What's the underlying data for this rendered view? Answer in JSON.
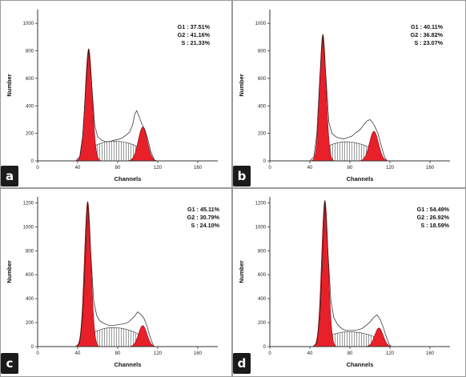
{
  "chart_data": [
    {
      "panel": "a",
      "type": "area",
      "xlabel": "Channels",
      "ylabel": "Number",
      "xlim": [
        0,
        180
      ],
      "ylim": [
        0,
        1100
      ],
      "x_ticks": [
        0,
        40,
        80,
        120,
        160
      ],
      "y_ticks": [
        0,
        200,
        400,
        600,
        800,
        1000
      ],
      "stats": [
        {
          "label": "G1",
          "text": "G1 : 37.51%"
        },
        {
          "label": "G2",
          "text": "G2 : 41.16%"
        },
        {
          "label": "S",
          "text": "S : 21.33%"
        }
      ],
      "g1_peak": {
        "center": 51,
        "height": 815,
        "sigma": 3.5
      },
      "g2_peak": {
        "center": 105,
        "height": 245,
        "sigma": 4.5
      },
      "s_phase": {
        "start": 44,
        "end": 112,
        "level": 145
      },
      "histogram": [
        [
          38,
          0
        ],
        [
          42,
          30
        ],
        [
          45,
          180
        ],
        [
          48,
          520
        ],
        [
          51,
          815
        ],
        [
          54,
          560
        ],
        [
          57,
          260
        ],
        [
          60,
          175
        ],
        [
          64,
          150
        ],
        [
          68,
          140
        ],
        [
          72,
          140
        ],
        [
          76,
          150
        ],
        [
          80,
          155
        ],
        [
          84,
          165
        ],
        [
          88,
          185
        ],
        [
          92,
          210
        ],
        [
          95,
          265
        ],
        [
          97,
          340
        ],
        [
          99,
          365
        ],
        [
          101,
          330
        ],
        [
          104,
          270
        ],
        [
          107,
          230
        ],
        [
          110,
          160
        ],
        [
          113,
          70
        ],
        [
          117,
          0
        ]
      ]
    },
    {
      "panel": "b",
      "type": "area",
      "xlabel": "Channels",
      "ylabel": "Number",
      "xlim": [
        0,
        180
      ],
      "ylim": [
        0,
        1100
      ],
      "x_ticks": [
        0,
        40,
        80,
        120,
        160
      ],
      "y_ticks": [
        0,
        200,
        400,
        600,
        800,
        1000
      ],
      "stats": [
        {
          "label": "G1",
          "text": "G1 : 40.11%"
        },
        {
          "label": "G2",
          "text": "G2 : 36.82%"
        },
        {
          "label": "S",
          "text": "S : 23.07%"
        }
      ],
      "g1_peak": {
        "center": 53,
        "height": 920,
        "sigma": 3.2
      },
      "g2_peak": {
        "center": 104,
        "height": 215,
        "sigma": 4.5
      },
      "s_phase": {
        "start": 45,
        "end": 110,
        "level": 140
      },
      "histogram": [
        [
          40,
          0
        ],
        [
          44,
          30
        ],
        [
          47,
          200
        ],
        [
          50,
          620
        ],
        [
          53,
          920
        ],
        [
          56,
          620
        ],
        [
          59,
          280
        ],
        [
          62,
          200
        ],
        [
          66,
          175
        ],
        [
          70,
          165
        ],
        [
          74,
          160
        ],
        [
          78,
          170
        ],
        [
          82,
          180
        ],
        [
          86,
          205
        ],
        [
          90,
          225
        ],
        [
          94,
          265
        ],
        [
          97,
          290
        ],
        [
          100,
          300
        ],
        [
          102,
          285
        ],
        [
          105,
          250
        ],
        [
          108,
          200
        ],
        [
          111,
          120
        ],
        [
          114,
          40
        ],
        [
          117,
          0
        ]
      ]
    },
    {
      "panel": "c",
      "type": "area",
      "xlabel": "Channels",
      "ylabel": "Number",
      "xlim": [
        0,
        180
      ],
      "ylim": [
        0,
        1250
      ],
      "x_ticks": [
        0,
        40,
        80,
        120,
        160
      ],
      "y_ticks": [
        0,
        200,
        400,
        600,
        800,
        1000,
        1200
      ],
      "stats": [
        {
          "label": "G1",
          "text": "G1 : 45.11%"
        },
        {
          "label": "G2",
          "text": "G2 : 30.79%"
        },
        {
          "label": "S",
          "text": "S : 24.10%"
        }
      ],
      "g1_peak": {
        "center": 50,
        "height": 1210,
        "sigma": 3.3
      },
      "g2_peak": {
        "center": 105,
        "height": 175,
        "sigma": 4.2
      },
      "s_phase": {
        "start": 44,
        "end": 110,
        "level": 160
      },
      "histogram": [
        [
          38,
          0
        ],
        [
          42,
          30
        ],
        [
          45,
          250
        ],
        [
          48,
          800
        ],
        [
          50,
          1210
        ],
        [
          53,
          800
        ],
        [
          56,
          380
        ],
        [
          59,
          260
        ],
        [
          62,
          215
        ],
        [
          66,
          195
        ],
        [
          70,
          180
        ],
        [
          74,
          175
        ],
        [
          78,
          180
        ],
        [
          82,
          185
        ],
        [
          86,
          190
        ],
        [
          90,
          200
        ],
        [
          94,
          230
        ],
        [
          97,
          255
        ],
        [
          100,
          290
        ],
        [
          103,
          270
        ],
        [
          106,
          240
        ],
        [
          109,
          180
        ],
        [
          112,
          90
        ],
        [
          116,
          0
        ]
      ]
    },
    {
      "panel": "d",
      "type": "area",
      "xlabel": "Channels",
      "ylabel": "Number",
      "xlim": [
        0,
        180
      ],
      "ylim": [
        0,
        1250
      ],
      "x_ticks": [
        0,
        40,
        80,
        120,
        160
      ],
      "y_ticks": [
        0,
        200,
        400,
        600,
        800,
        1000,
        1200
      ],
      "stats": [
        {
          "label": "G1",
          "text": "G1 : 54.49%"
        },
        {
          "label": "G2",
          "text": "G2 : 26.92%"
        },
        {
          "label": "S",
          "text": "S : 18.59%"
        }
      ],
      "g1_peak": {
        "center": 55,
        "height": 1220,
        "sigma": 3.3
      },
      "g2_peak": {
        "center": 109,
        "height": 155,
        "sigma": 4.2
      },
      "s_phase": {
        "start": 48,
        "end": 114,
        "level": 125
      },
      "histogram": [
        [
          43,
          0
        ],
        [
          47,
          30
        ],
        [
          50,
          250
        ],
        [
          53,
          800
        ],
        [
          55,
          1220
        ],
        [
          58,
          800
        ],
        [
          61,
          380
        ],
        [
          64,
          240
        ],
        [
          68,
          180
        ],
        [
          72,
          150
        ],
        [
          76,
          135
        ],
        [
          80,
          135
        ],
        [
          84,
          135
        ],
        [
          88,
          140
        ],
        [
          92,
          150
        ],
        [
          96,
          175
        ],
        [
          100,
          205
        ],
        [
          104,
          245
        ],
        [
          107,
          265
        ],
        [
          110,
          230
        ],
        [
          113,
          170
        ],
        [
          116,
          90
        ],
        [
          119,
          25
        ],
        [
          121,
          0
        ]
      ]
    }
  ]
}
